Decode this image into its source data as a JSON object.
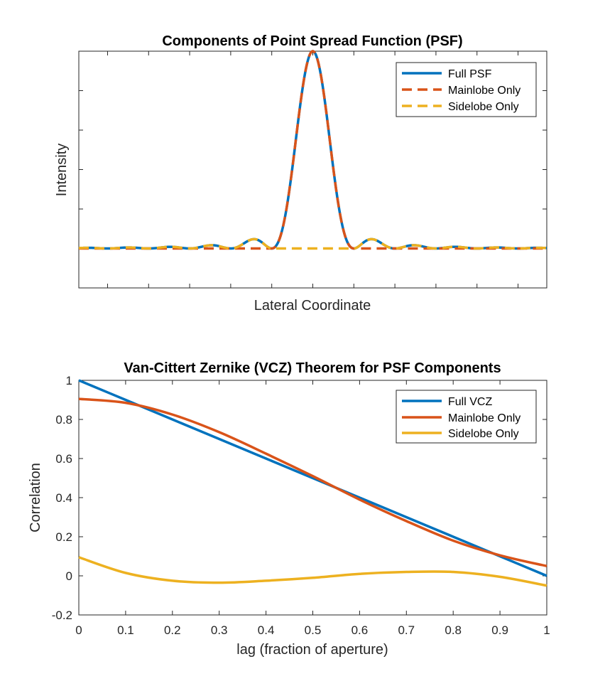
{
  "chart_data": [
    {
      "type": "line",
      "title": "Components of Point Spread Function (PSF)",
      "xlabel": "Lateral Coordinate",
      "ylabel": "Intensity",
      "xlim": [
        -5.7,
        5.7
      ],
      "ylim": [
        -0.2,
        1.0
      ],
      "x_tick_labels_shown": false,
      "y_tick_labels_shown": false,
      "legend": "top-right",
      "series": [
        {
          "name": "Full PSF",
          "style": "solid",
          "color": "#0072BD"
        },
        {
          "name": "Mainlobe Only",
          "style": "dashed",
          "color": "#D95319"
        },
        {
          "name": "Sidelobe Only",
          "style": "dashed",
          "color": "#EDB120"
        }
      ]
    },
    {
      "type": "line",
      "title": "Van-Cittert Zernike (VCZ) Theorem for PSF Components",
      "xlabel": "lag (fraction of aperture)",
      "ylabel": "Correlation",
      "xlim": [
        0,
        1
      ],
      "ylim": [
        -0.2,
        1
      ],
      "xticks": [
        "0",
        "0.1",
        "0.2",
        "0.3",
        "0.4",
        "0.5",
        "0.6",
        "0.7",
        "0.8",
        "0.9",
        "1"
      ],
      "yticks": [
        "-0.2",
        "0",
        "0.2",
        "0.4",
        "0.6",
        "0.8",
        "1"
      ],
      "legend": "top-right",
      "series": [
        {
          "name": "Full VCZ",
          "color": "#0072BD",
          "x": [
            0,
            0.1,
            0.2,
            0.3,
            0.4,
            0.5,
            0.6,
            0.7,
            0.8,
            0.9,
            1.0
          ],
          "values": [
            1.0,
            0.9,
            0.8,
            0.7,
            0.6,
            0.5,
            0.4,
            0.3,
            0.2,
            0.1,
            0.0
          ]
        },
        {
          "name": "Mainlobe Only",
          "color": "#D95319",
          "x": [
            0,
            0.1,
            0.2,
            0.3,
            0.4,
            0.5,
            0.6,
            0.7,
            0.8,
            0.9,
            1.0
          ],
          "values": [
            0.905,
            0.885,
            0.825,
            0.735,
            0.625,
            0.51,
            0.39,
            0.28,
            0.18,
            0.105,
            0.05
          ]
        },
        {
          "name": "Sidelobe Only",
          "color": "#EDB120",
          "x": [
            0,
            0.1,
            0.2,
            0.3,
            0.4,
            0.5,
            0.6,
            0.7,
            0.8,
            0.9,
            1.0
          ],
          "values": [
            0.095,
            0.015,
            -0.025,
            -0.035,
            -0.025,
            -0.01,
            0.01,
            0.02,
            0.02,
            -0.005,
            -0.05
          ]
        }
      ]
    }
  ]
}
